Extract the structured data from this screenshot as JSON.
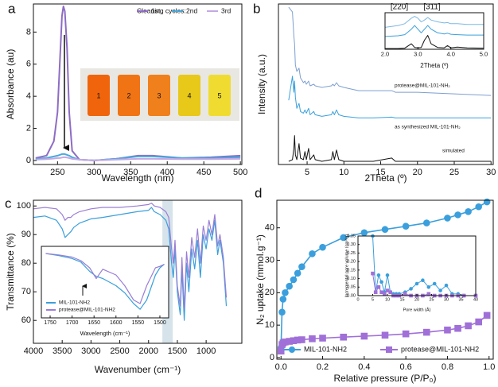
{
  "chart_data": [
    {
      "type": "line",
      "label": "a",
      "xlabel": "Wavelength (nm)",
      "ylabel": "Absorbance (au)",
      "xlim": [
        217,
        502
      ],
      "ylim": [
        -0.25,
        9.75
      ],
      "xticks": [
        250,
        300,
        350,
        400,
        450,
        500
      ],
      "yticks": [
        0,
        2,
        4,
        6,
        8
      ],
      "legend_title": "Cleaning cycles:",
      "photo_labels": [
        "1",
        "2",
        "3",
        "4",
        "5"
      ],
      "x": [
        220,
        235,
        245,
        250,
        253,
        256,
        258,
        260,
        263,
        266,
        270,
        280,
        300,
        330,
        360,
        380,
        420,
        460,
        500
      ],
      "series": [
        {
          "name": "1st",
          "color": "#8e6cc4",
          "values": [
            0.15,
            0.3,
            1.2,
            3,
            6,
            9,
            9.6,
            9.3,
            7,
            3,
            0.6,
            0.05,
            0.0,
            0.1,
            0.3,
            0.3,
            0.15,
            0.2,
            0.3
          ]
        },
        {
          "name": "2nd",
          "color": "#4aa8dc",
          "values": [
            0.1,
            0.15,
            0.25,
            0.3,
            0.35,
            0.4,
            0.4,
            0.4,
            0.35,
            0.3,
            0.2,
            0.05,
            0.0,
            0.1,
            0.25,
            0.25,
            0.15,
            0.15,
            0.2
          ]
        },
        {
          "name": "3rd",
          "color": "#c4a8e4",
          "values": [
            0.05,
            0.08,
            0.12,
            0.15,
            0.15,
            0.18,
            0.2,
            0.2,
            0.18,
            0.15,
            0.1,
            0.05,
            0.0,
            0.05,
            0.1,
            0.1,
            0.08,
            0.08,
            0.1
          ]
        }
      ]
    },
    {
      "type": "line",
      "label": "b",
      "xlabel": "2Theta (º)",
      "ylabel": "Intensity (a.u.)",
      "xlim": [
        1.1,
        30.3
      ],
      "ylim": [
        0,
        10
      ],
      "xticks": [
        5,
        10,
        15,
        20,
        25,
        30
      ],
      "x": [
        2.5,
        3.0,
        3.2,
        3.3,
        3.4,
        3.6,
        3.9,
        4.1,
        4.5,
        4.7,
        4.9,
        5.2,
        5.4,
        5.9,
        6.1,
        7,
        8.3,
        8.5,
        8.7,
        9.0,
        9.3,
        10,
        12,
        14,
        16.5,
        17,
        20,
        25,
        30
      ],
      "series": [
        {
          "name": "protease@MIL-101-NH₂",
          "color": "#7d9fd0",
          "values": [
            9.8,
            9.5,
            8.0,
            7.5,
            6.2,
            5.8,
            6.0,
            5.4,
            5.1,
            5.2,
            5.0,
            5.2,
            4.9,
            5.0,
            4.9,
            4.8,
            4.9,
            5.0,
            4.9,
            5.1,
            4.9,
            4.8,
            4.6,
            4.6,
            4.6,
            4.5,
            4.5,
            4.4,
            4.3
          ]
        },
        {
          "name": "as synthesized MIL-101-NH₂",
          "color": "#3aa0dc",
          "values": [
            4,
            5.5,
            4.5,
            5.2,
            4.2,
            3.5,
            3.8,
            3.3,
            3.2,
            3.4,
            3.2,
            3.5,
            3.1,
            3.3,
            3.1,
            3.0,
            3.1,
            3.3,
            3.1,
            3.4,
            3.1,
            3.0,
            2.9,
            2.9,
            2.95,
            2.9,
            2.9,
            2.9,
            2.9
          ]
        },
        {
          "name": "simulated",
          "color": "#111111",
          "values": [
            0.2,
            0.3,
            1.0,
            1.8,
            0.6,
            0.3,
            1.3,
            0.4,
            0.3,
            0.8,
            0.3,
            1.0,
            0.3,
            0.6,
            0.3,
            0.2,
            0.3,
            0.8,
            0.3,
            0.9,
            0.3,
            0.2,
            0.2,
            0.2,
            0.4,
            0.2,
            0.2,
            0.2,
            0.2
          ]
        }
      ],
      "inset": {
        "xlabel": "2Theta (º)",
        "annotations": [
          "[220]",
          "[311]"
        ],
        "xlim": [
          2,
          5
        ],
        "ylim": [
          0,
          10
        ],
        "xticks": [
          {
            "value": 2,
            "label": "2.0"
          },
          {
            "value": 3,
            "label": "3.0"
          },
          {
            "value": 4,
            "label": "4.0"
          },
          {
            "value": 5,
            "label": "5.0"
          }
        ],
        "x": [
          2,
          2.4,
          2.6,
          2.8,
          2.9,
          3.0,
          3.1,
          3.2,
          3.3,
          3.4,
          3.6,
          3.8,
          3.9,
          4.0,
          4.2,
          4.5,
          5
        ],
        "series": [
          {
            "color": "#7ab8e4",
            "values": [
              6,
              6.5,
              7,
              8.5,
              9,
              8.5,
              7.5,
              8,
              8.7,
              8,
              7.5,
              7.2,
              7.3,
              7,
              7,
              6.8,
              6.8
            ]
          },
          {
            "color": "#3aa0dc",
            "values": [
              3.5,
              3.7,
              4,
              5.5,
              6.5,
              5.5,
              4.5,
              5.5,
              6.5,
              5.5,
              4.5,
              4.2,
              4.4,
              4.1,
              4,
              3.9,
              3.9
            ]
          },
          {
            "color": "#111111",
            "values": [
              0.2,
              0.2,
              0.3,
              1.5,
              0.5,
              0.4,
              0.5,
              2.5,
              3.8,
              1.5,
              0.5,
              0.4,
              1,
              0.4,
              0.6,
              0.4,
              0.3
            ]
          }
        ]
      }
    },
    {
      "type": "line",
      "label": "c",
      "xlabel": "Wavenumber (cm⁻¹)",
      "ylabel": "Transmittance (%)",
      "xlim": [
        4000,
        380
      ],
      "ylim": [
        52,
        102
      ],
      "xticks": [
        4000,
        3500,
        3000,
        2500,
        2000,
        1500,
        1000
      ],
      "yticks": [
        60,
        70,
        80,
        90,
        100
      ],
      "highlight_range": [
        1760,
        1580
      ],
      "x": [
        4000,
        3800,
        3600,
        3500,
        3450,
        3400,
        3350,
        3300,
        3200,
        3000,
        2800,
        2500,
        2200,
        2000,
        1950,
        1900,
        1800,
        1700,
        1650,
        1600,
        1570,
        1540,
        1500,
        1450,
        1420,
        1380,
        1340,
        1300,
        1250,
        1200,
        1150,
        1100,
        1050,
        1000,
        950,
        900,
        850,
        800,
        760,
        700,
        650
      ],
      "series": [
        {
          "color": "#3a9fdc",
          "values": [
            96,
            96.5,
            95,
            92,
            89,
            90,
            91,
            92.5,
            94,
            95.5,
            96,
            97,
            98,
            98.5,
            99.5,
            98,
            97,
            95,
            92,
            80,
            75,
            85,
            70,
            62,
            78,
            60,
            80,
            70,
            85,
            78,
            88,
            75,
            90,
            85,
            92,
            88,
            95,
            83,
            88,
            80,
            65
          ]
        },
        {
          "color": "#9a7ed4",
          "values": [
            99,
            99.5,
            99,
            97,
            95,
            96,
            96,
            97,
            98,
            99,
            99.5,
            99.5,
            100,
            100.5,
            101,
            100,
            99.5,
            98,
            96,
            85,
            80,
            88,
            72,
            65,
            82,
            64,
            84,
            75,
            89,
            82,
            92,
            80,
            93,
            88,
            95,
            90,
            97,
            86,
            90,
            82,
            68
          ]
        }
      ],
      "inset": {
        "xlabel": "Wavelength (cm⁻¹)",
        "xlim": [
          1770,
          1480
        ],
        "ylim": [
          0,
          10
        ],
        "xticks": [
          1750,
          1700,
          1650,
          1600,
          1550,
          1500
        ],
        "x": [
          1760,
          1730,
          1700,
          1680,
          1660,
          1645,
          1630,
          1600,
          1580,
          1560,
          1545,
          1530,
          1510,
          1500,
          1490
        ],
        "series": [
          {
            "name": "MIL-101-NH2",
            "color": "#3a9fdc",
            "values": [
              9,
              8.7,
              8.3,
              7.8,
              6.5,
              5.8,
              5.5,
              4.5,
              3.5,
              2,
              1.2,
              2.5,
              6,
              7,
              7.5
            ]
          },
          {
            "name": "protease@MIL-101-NH2",
            "color": "#9a7ed4",
            "values": [
              9,
              8.8,
              8.5,
              8.0,
              7.0,
              5.5,
              6.8,
              6,
              4.5,
              2.5,
              2,
              4.5,
              7,
              7.2,
              7.5
            ]
          }
        ]
      }
    },
    {
      "type": "scatter",
      "label": "d",
      "xlabel": "Relative pressure (P/P₀)",
      "ylabel": "N₂ uptake (mmol.g⁻¹)",
      "xlim": [
        -0.02,
        1.02
      ],
      "ylim": [
        -0.5,
        48.5
      ],
      "xticks": [
        {
          "value": 0,
          "label": "0.0"
        },
        0.2,
        0.4,
        0.6,
        0.8,
        {
          "value": 1,
          "label": "1.0"
        }
      ],
      "yticks": [
        0,
        10,
        20,
        30,
        40
      ],
      "x": [
        0.0,
        0.005,
        0.01,
        0.02,
        0.04,
        0.06,
        0.08,
        0.1,
        0.15,
        0.2,
        0.3,
        0.4,
        0.5,
        0.6,
        0.7,
        0.8,
        0.85,
        0.9,
        0.95,
        0.99
      ],
      "series": [
        {
          "name": "MIL-101-NH2",
          "color": "#3a9fdc",
          "marker": "circle",
          "values": [
            3,
            14,
            18,
            20,
            22,
            24,
            26,
            28,
            32,
            34,
            37,
            38.5,
            39.5,
            40.5,
            41.5,
            43,
            44,
            45,
            46.5,
            48
          ]
        },
        {
          "name": "protease@MIL-101-NH2",
          "color": "#a070d8",
          "marker": "square",
          "values": [
            2,
            4,
            4.5,
            4.8,
            5,
            5.2,
            5.4,
            5.5,
            5.8,
            6,
            6.3,
            6.6,
            6.9,
            7.3,
            7.8,
            8.5,
            9,
            9.8,
            11,
            13
          ]
        }
      ],
      "inset": {
        "xlabel": "Pore width (Å)",
        "ylabel": "Incremental pore volume (cm³/g)",
        "xlim": [
          0,
          40
        ],
        "ylim": [
          0,
          0.35
        ],
        "xticks": [
          0,
          5,
          10,
          15,
          20,
          25,
          30,
          35,
          40
        ],
        "yticks": [
          {
            "value": 0,
            "label": "0.00"
          },
          0.05,
          {
            "value": 0.1,
            "label": "0.10"
          },
          0.15,
          {
            "value": 0.2,
            "label": "0.20"
          },
          0.25,
          {
            "value": 0.3,
            "label": "0.30"
          },
          0.35
        ],
        "x": [
          5,
          6,
          7,
          8,
          9,
          10,
          11,
          12,
          13,
          14,
          16,
          18,
          20,
          22,
          24,
          26,
          28,
          30,
          32,
          34,
          36,
          40
        ],
        "series": [
          {
            "color": "#3a9fdc",
            "marker": "circle",
            "values": [
              0.35,
              0.02,
              0.12,
              0.08,
              0.02,
              0.12,
              0.02,
              0.01,
              0.01,
              0.01,
              0.02,
              0.04,
              0.07,
              0.09,
              0.05,
              0.07,
              0.03,
              0.06,
              0.01,
              0.01,
              0.0,
              0.0
            ]
          },
          {
            "color": "#a070d8",
            "marker": "square",
            "values": [
              0.13,
              0.02,
              0.05,
              0.02,
              0.01,
              0.03,
              0.02,
              0.0,
              0.0,
              0.0,
              0.01,
              0.0,
              0.0,
              0.0,
              0.01,
              0.0,
              0.0,
              0.0,
              0.0,
              0.0,
              0.0,
              0.0
            ]
          }
        ]
      }
    }
  ]
}
